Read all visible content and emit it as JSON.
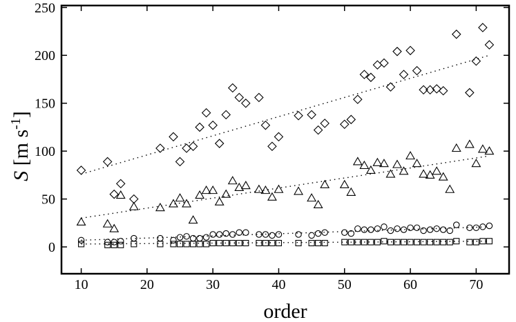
{
  "chart_data": {
    "type": "scatter",
    "xlabel": "order",
    "ylabel": "S [m s-1]",
    "ylabel_parts": {
      "symbol": "S",
      "unit_left": "[m s",
      "unit_exp": "-1",
      "unit_right": "]"
    },
    "xlim": [
      7,
      75
    ],
    "ylim": [
      -28,
      252
    ],
    "xticks": [
      10,
      20,
      30,
      40,
      50,
      60,
      70
    ],
    "yticks": [
      0,
      50,
      100,
      150,
      200,
      250
    ],
    "grid": false,
    "legend": "none",
    "series": [
      {
        "marker": "diamond",
        "points": [
          [
            10,
            80
          ],
          [
            14,
            89
          ],
          [
            15,
            55
          ],
          [
            16,
            66
          ],
          [
            18,
            50
          ],
          [
            22,
            103
          ],
          [
            24,
            115
          ],
          [
            25,
            89
          ],
          [
            26,
            103
          ],
          [
            27,
            105
          ],
          [
            28,
            125
          ],
          [
            29,
            140
          ],
          [
            30,
            127
          ],
          [
            31,
            108
          ],
          [
            32,
            138
          ],
          [
            33,
            166
          ],
          [
            34,
            156
          ],
          [
            35,
            150
          ],
          [
            37,
            156
          ],
          [
            38,
            127
          ],
          [
            39,
            105
          ],
          [
            40,
            115
          ],
          [
            43,
            137
          ],
          [
            45,
            138
          ],
          [
            46,
            122
          ],
          [
            47,
            129
          ],
          [
            50,
            128
          ],
          [
            51,
            133
          ],
          [
            52,
            154
          ],
          [
            53,
            180
          ],
          [
            54,
            177
          ],
          [
            55,
            190
          ],
          [
            56,
            192
          ],
          [
            57,
            167
          ],
          [
            58,
            204
          ],
          [
            59,
            180
          ],
          [
            60,
            205
          ],
          [
            61,
            184
          ],
          [
            62,
            164
          ],
          [
            63,
            164
          ],
          [
            64,
            165
          ],
          [
            65,
            163
          ],
          [
            67,
            222
          ],
          [
            69,
            161
          ],
          [
            70,
            194
          ],
          [
            71,
            229
          ],
          [
            72,
            211
          ]
        ],
        "trend": [
          [
            10,
            76
          ],
          [
            72,
            200
          ]
        ]
      },
      {
        "marker": "triangle",
        "points": [
          [
            10,
            26
          ],
          [
            14,
            24
          ],
          [
            15,
            19
          ],
          [
            16,
            54
          ],
          [
            18,
            42
          ],
          [
            22,
            41
          ],
          [
            24,
            45
          ],
          [
            25,
            51
          ],
          [
            26,
            45
          ],
          [
            27,
            28
          ],
          [
            28,
            54
          ],
          [
            29,
            59
          ],
          [
            30,
            59
          ],
          [
            31,
            47
          ],
          [
            32,
            55
          ],
          [
            33,
            69
          ],
          [
            34,
            62
          ],
          [
            35,
            64
          ],
          [
            37,
            60
          ],
          [
            38,
            59
          ],
          [
            39,
            52
          ],
          [
            40,
            60
          ],
          [
            43,
            58
          ],
          [
            45,
            51
          ],
          [
            46,
            44
          ],
          [
            47,
            65
          ],
          [
            50,
            65
          ],
          [
            51,
            57
          ],
          [
            52,
            89
          ],
          [
            53,
            85
          ],
          [
            54,
            80
          ],
          [
            55,
            88
          ],
          [
            56,
            87
          ],
          [
            57,
            76
          ],
          [
            58,
            86
          ],
          [
            59,
            79
          ],
          [
            60,
            95
          ],
          [
            61,
            87
          ],
          [
            62,
            76
          ],
          [
            63,
            75
          ],
          [
            64,
            79
          ],
          [
            65,
            73
          ],
          [
            66,
            60
          ],
          [
            67,
            103
          ],
          [
            69,
            107
          ],
          [
            70,
            87
          ],
          [
            71,
            102
          ],
          [
            72,
            100
          ]
        ],
        "trend": [
          [
            10,
            30
          ],
          [
            72,
            95
          ]
        ]
      },
      {
        "marker": "circle",
        "points": [
          [
            10,
            7
          ],
          [
            14,
            5
          ],
          [
            15,
            5
          ],
          [
            16,
            6
          ],
          [
            18,
            9
          ],
          [
            22,
            9
          ],
          [
            24,
            7
          ],
          [
            25,
            10
          ],
          [
            26,
            11
          ],
          [
            27,
            9
          ],
          [
            28,
            9
          ],
          [
            29,
            10
          ],
          [
            30,
            13
          ],
          [
            31,
            13
          ],
          [
            32,
            14
          ],
          [
            33,
            13
          ],
          [
            34,
            15
          ],
          [
            35,
            15
          ],
          [
            37,
            13
          ],
          [
            38,
            13
          ],
          [
            39,
            12
          ],
          [
            40,
            13
          ],
          [
            43,
            13
          ],
          [
            45,
            12
          ],
          [
            46,
            14
          ],
          [
            47,
            15
          ],
          [
            50,
            15
          ],
          [
            51,
            14
          ],
          [
            52,
            19
          ],
          [
            53,
            18
          ],
          [
            54,
            18
          ],
          [
            55,
            19
          ],
          [
            56,
            21
          ],
          [
            57,
            17
          ],
          [
            58,
            19
          ],
          [
            59,
            18
          ],
          [
            60,
            20
          ],
          [
            61,
            20
          ],
          [
            62,
            17
          ],
          [
            63,
            18
          ],
          [
            64,
            19
          ],
          [
            65,
            18
          ],
          [
            66,
            17
          ],
          [
            67,
            23
          ],
          [
            69,
            20
          ],
          [
            70,
            20
          ],
          [
            71,
            21
          ],
          [
            72,
            22
          ]
        ],
        "trend": [
          [
            10,
            7
          ],
          [
            72,
            21
          ]
        ]
      },
      {
        "marker": "square",
        "points": [
          [
            10,
            3
          ],
          [
            14,
            2
          ],
          [
            15,
            2
          ],
          [
            16,
            2
          ],
          [
            18,
            3
          ],
          [
            22,
            3
          ],
          [
            24,
            3
          ],
          [
            25,
            3
          ],
          [
            26,
            3
          ],
          [
            27,
            3
          ],
          [
            28,
            3
          ],
          [
            29,
            3
          ],
          [
            30,
            4
          ],
          [
            31,
            4
          ],
          [
            32,
            4
          ],
          [
            33,
            4
          ],
          [
            34,
            4
          ],
          [
            35,
            4
          ],
          [
            37,
            4
          ],
          [
            38,
            4
          ],
          [
            39,
            4
          ],
          [
            40,
            4
          ],
          [
            43,
            4
          ],
          [
            45,
            4
          ],
          [
            46,
            4
          ],
          [
            47,
            4
          ],
          [
            50,
            5
          ],
          [
            51,
            5
          ],
          [
            52,
            5
          ],
          [
            53,
            5
          ],
          [
            54,
            5
          ],
          [
            55,
            5
          ],
          [
            56,
            6
          ],
          [
            57,
            5
          ],
          [
            58,
            5
          ],
          [
            59,
            5
          ],
          [
            60,
            5
          ],
          [
            61,
            5
          ],
          [
            62,
            5
          ],
          [
            63,
            5
          ],
          [
            64,
            5
          ],
          [
            65,
            5
          ],
          [
            66,
            5
          ],
          [
            67,
            6
          ],
          [
            69,
            5
          ],
          [
            70,
            5
          ],
          [
            71,
            6
          ],
          [
            72,
            6
          ]
        ],
        "trend": [
          [
            10,
            3
          ],
          [
            72,
            6
          ]
        ]
      }
    ]
  }
}
